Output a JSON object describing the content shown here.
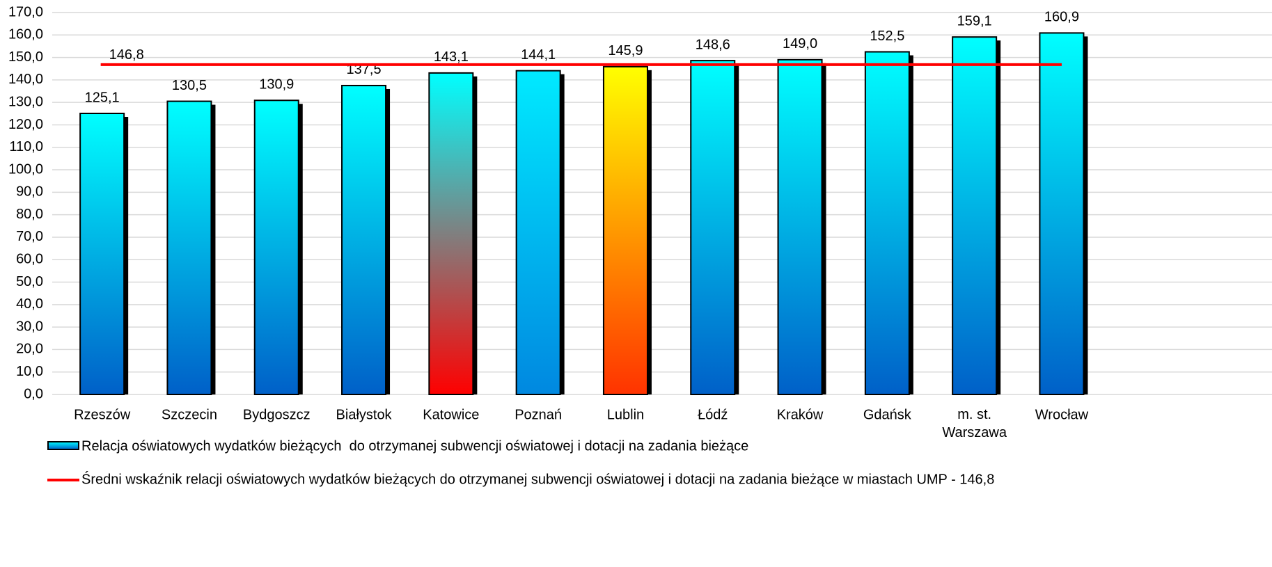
{
  "chart_data": {
    "type": "bar",
    "categories": [
      "Rzeszów",
      "Szczecin",
      "Bydgoszcz",
      "Białystok",
      "Katowice",
      "Poznań",
      "Lublin",
      "Łódź",
      "Kraków",
      "Gdańsk",
      "m. st. Warszawa",
      "Wrocław"
    ],
    "series": [
      {
        "name": "Relacja oświatowych wydatków bieżących  do otrzymanej subwencji oświatowej i dotacji na zadania bieżące",
        "values": [
          125.1,
          130.5,
          130.9,
          137.5,
          143.1,
          144.1,
          145.9,
          148.6,
          149.0,
          152.5,
          159.1,
          160.9
        ],
        "value_labels": [
          "125,1",
          "130,5",
          "130,9",
          "137,5",
          "143,1",
          "144,1",
          "145,9",
          "148,6",
          "149,0",
          "152,5",
          "159,1",
          "160,9"
        ],
        "color": [
          "#00ffff",
          "#0060c8"
        ],
        "colors": [
          [
            "#00ffff",
            "#0060c8"
          ],
          [
            "#00ffff",
            "#0060c8"
          ],
          [
            "#00ffff",
            "#0060c8"
          ],
          [
            "#00ffff",
            "#0060c8"
          ],
          [
            "#00ffff",
            "#ff0000"
          ],
          [
            "#00eaff",
            "#0088e0"
          ],
          [
            "#ffff00",
            "#ff3300"
          ],
          [
            "#00ffff",
            "#0060c8"
          ],
          [
            "#00ffff",
            "#0060c8"
          ],
          [
            "#00ffff",
            "#0060c8"
          ],
          [
            "#00ffff",
            "#0060c8"
          ],
          [
            "#00ffff",
            "#0060c8"
          ]
        ]
      },
      {
        "name": "Średni wskaźnik relacji oświatowych wydatków bieżących do otrzymanej subwencji oświatowej i dotacji na zadania bieżące w miastach UMP - 146,8",
        "type": "line",
        "value": 146.8,
        "value_label": "146,8",
        "color": "#ff0000"
      }
    ],
    "ylim": [
      0,
      170
    ],
    "yticks": [
      {
        "value": 0,
        "label": "0,0"
      },
      {
        "value": 10,
        "label": "10,0"
      },
      {
        "value": 20,
        "label": "20,0"
      },
      {
        "value": 30,
        "label": "30,0"
      },
      {
        "value": 40,
        "label": "40,0"
      },
      {
        "value": 50,
        "label": "50,0"
      },
      {
        "value": 60,
        "label": "60,0"
      },
      {
        "value": 70,
        "label": "70,0"
      },
      {
        "value": 80,
        "label": "80,0"
      },
      {
        "value": 90,
        "label": "90,0"
      },
      {
        "value": 100,
        "label": "100,0"
      },
      {
        "value": 110,
        "label": "110,0"
      },
      {
        "value": 120,
        "label": "120,0"
      },
      {
        "value": 130,
        "label": "130,0"
      },
      {
        "value": 140,
        "label": "140,0"
      },
      {
        "value": 150,
        "label": "150,0"
      },
      {
        "value": 160,
        "label": "160,0"
      },
      {
        "value": 170,
        "label": "170,0"
      }
    ],
    "grid": true,
    "legend": "bottom"
  }
}
